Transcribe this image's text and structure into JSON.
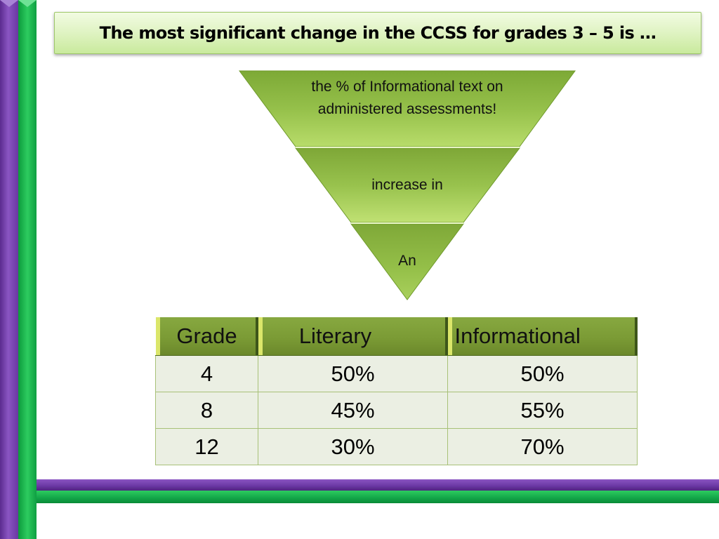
{
  "title": "The most significant change in the CCSS for grades 3 – 5 is …",
  "funnel": {
    "top": "the % of Informational text on administered assessments!",
    "middle": "increase in",
    "bottom": "An"
  },
  "table": {
    "headers": [
      "Grade",
      "Literary",
      "Informational"
    ],
    "rows": [
      [
        "4",
        "50%",
        "50%"
      ],
      [
        "8",
        "45%",
        "55%"
      ],
      [
        "12",
        "30%",
        "70%"
      ]
    ]
  },
  "colors": {
    "purple": "#6a37a3",
    "green": "#1fb552",
    "funnel_green": "#8db842",
    "header_green": "#7b9b35"
  }
}
